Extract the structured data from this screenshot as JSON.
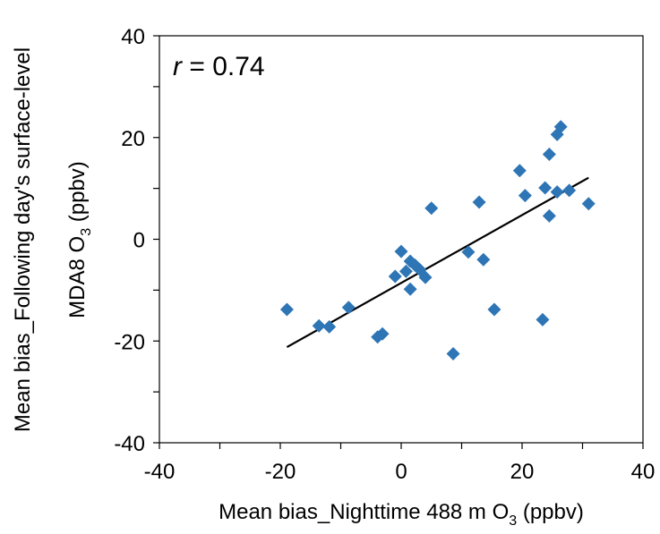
{
  "chart_data": {
    "type": "scatter",
    "xlabel": {
      "pre": "Mean bias_Nighttime 488 m O",
      "sub": "3",
      "post": " (ppbv)"
    },
    "ylabel": {
      "line1": "Mean bias_Following day's surface-level",
      "line2_pre": "MDA8 O",
      "line2_sub": "3",
      "line2_post": " (ppbv)"
    },
    "annotation": {
      "var": "r",
      "rest": " = 0.74"
    },
    "xlim": [
      -40,
      40
    ],
    "ylim": [
      -40,
      40
    ],
    "xticks": [
      -40,
      -20,
      0,
      20,
      40
    ],
    "yticks": [
      -40,
      -20,
      0,
      20,
      40
    ],
    "xtick_labels": [
      "-40",
      "-20",
      "0",
      "20",
      "40"
    ],
    "ytick_labels": [
      "-40",
      "-20",
      "0",
      "20",
      "40"
    ],
    "minor_step": 10,
    "grid": false,
    "legend": "none",
    "marker_color": "#2E75B6",
    "trend_color": "#000000",
    "points": [
      {
        "x": -18.9,
        "y": -13.8
      },
      {
        "x": -13.6,
        "y": -17.0
      },
      {
        "x": -11.9,
        "y": -17.2
      },
      {
        "x": -8.7,
        "y": -13.4
      },
      {
        "x": -3.9,
        "y": -19.2
      },
      {
        "x": -3.1,
        "y": -18.6
      },
      {
        "x": -1.0,
        "y": -7.3
      },
      {
        "x": 0.8,
        "y": -6.3
      },
      {
        "x": 1.5,
        "y": -9.8
      },
      {
        "x": 1.5,
        "y": -4.3
      },
      {
        "x": 2.3,
        "y": -5.1
      },
      {
        "x": 3.1,
        "y": -6.0
      },
      {
        "x": 4.0,
        "y": -7.5
      },
      {
        "x": 0.0,
        "y": -2.4
      },
      {
        "x": 5.0,
        "y": 6.1
      },
      {
        "x": 8.6,
        "y": -22.5
      },
      {
        "x": 11.1,
        "y": -2.5
      },
      {
        "x": 12.9,
        "y": 7.3
      },
      {
        "x": 13.6,
        "y": -4.0
      },
      {
        "x": 15.4,
        "y": -13.8
      },
      {
        "x": 19.6,
        "y": 13.5
      },
      {
        "x": 20.5,
        "y": 8.6
      },
      {
        "x": 23.4,
        "y": -15.8
      },
      {
        "x": 23.8,
        "y": 10.1
      },
      {
        "x": 24.5,
        "y": 4.6
      },
      {
        "x": 24.5,
        "y": 16.7
      },
      {
        "x": 25.8,
        "y": 9.3
      },
      {
        "x": 25.8,
        "y": 20.6
      },
      {
        "x": 26.4,
        "y": 22.1
      },
      {
        "x": 27.8,
        "y": 9.6
      },
      {
        "x": 31.0,
        "y": 7.0
      }
    ],
    "trendline": {
      "x": [
        -18.9,
        31.0
      ],
      "y": [
        -21.2,
        12.1
      ]
    }
  }
}
